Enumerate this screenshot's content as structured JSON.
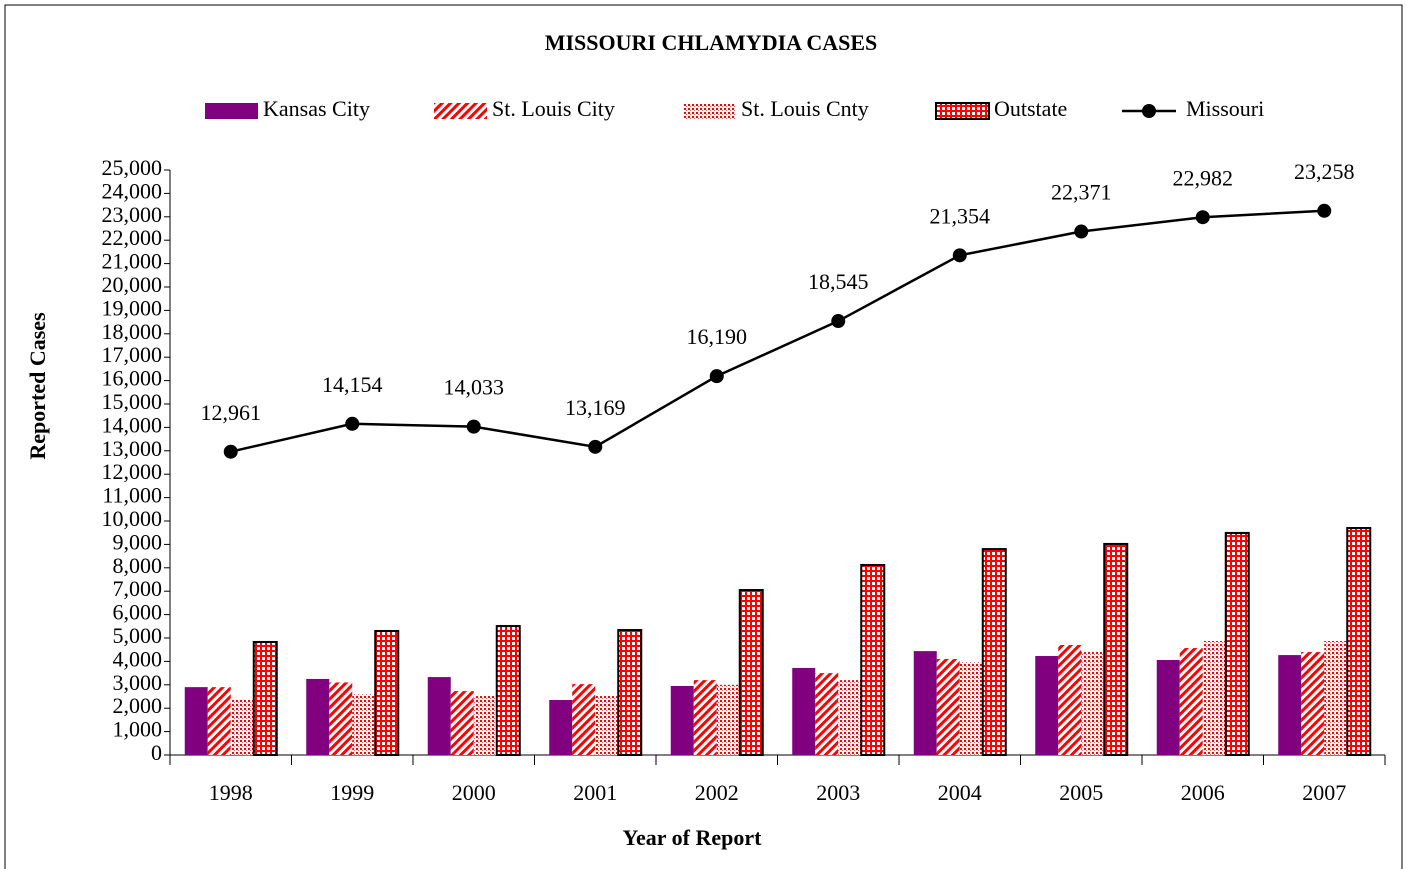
{
  "chart_data": {
    "type": "bar",
    "title": "MISSOURI CHLAMYDIA CASES",
    "x_label": "Year of Report",
    "y_label": "Reported Cases",
    "categories": [
      "1998",
      "1999",
      "2000",
      "2001",
      "2002",
      "2003",
      "2004",
      "2005",
      "2006",
      "2007"
    ],
    "series": [
      {
        "name": "Kansas City",
        "type": "bar",
        "color": "#800080",
        "pattern": "solid",
        "values": [
          2900,
          3250,
          3330,
          2350,
          2950,
          3720,
          4440,
          4230,
          4060,
          4270
        ]
      },
      {
        "name": "St. Louis City",
        "type": "bar",
        "color": "#ff0000",
        "pattern": "diagonal",
        "values": [
          2900,
          3100,
          2730,
          3030,
          3200,
          3500,
          4100,
          4700,
          4570,
          4400
        ]
      },
      {
        "name": "St. Louis Cnty",
        "type": "bar",
        "color": "#ff0000",
        "pattern": "dots",
        "values": [
          2350,
          2600,
          2520,
          2520,
          3000,
          3200,
          3970,
          4400,
          4870,
          4870
        ]
      },
      {
        "name": "Outstate",
        "type": "bar",
        "color": "#ff0000",
        "pattern": "grid",
        "values": [
          4830,
          5300,
          5510,
          5340,
          7050,
          8120,
          8800,
          9020,
          9490,
          9700
        ]
      },
      {
        "name": "Missouri",
        "type": "line",
        "color": "#000000",
        "values": [
          12961,
          14154,
          14033,
          13169,
          16190,
          18545,
          21354,
          22371,
          22982,
          23258
        ],
        "value_labels": [
          "12,961",
          "14,154",
          "14,033",
          "13,169",
          "16,190",
          "18,545",
          "21,354",
          "22,371",
          "22,982",
          "23,258"
        ]
      }
    ],
    "ylim": [
      0,
      25000
    ],
    "yticks": [
      0,
      {
        "value": 1000,
        "label": "1,000"
      },
      {
        "value": 2000,
        "label": "2,000"
      },
      {
        "value": 3000,
        "label": "3,000"
      },
      {
        "value": 4000,
        "label": "4,000"
      },
      {
        "value": 5000,
        "label": "5,000"
      },
      {
        "value": 6000,
        "label": "6,000"
      },
      {
        "value": 7000,
        "label": "7,000"
      },
      {
        "value": 8000,
        "label": "8,000"
      },
      {
        "value": 9000,
        "label": "9,000"
      },
      {
        "value": 10000,
        "label": "10,000"
      },
      {
        "value": 11000,
        "label": "11,000"
      },
      {
        "value": 12000,
        "label": "12,000"
      },
      {
        "value": 13000,
        "label": "13,000"
      },
      {
        "value": 14000,
        "label": "14,000"
      },
      {
        "value": 15000,
        "label": "15,000"
      },
      {
        "value": 16000,
        "label": "16,000"
      },
      {
        "value": 17000,
        "label": "17,000"
      },
      {
        "value": 18000,
        "label": "18,000"
      },
      {
        "value": 19000,
        "label": "19,000"
      },
      {
        "value": 20000,
        "label": "20,000"
      },
      {
        "value": 21000,
        "label": "21,000"
      },
      {
        "value": 22000,
        "label": "22,000"
      },
      {
        "value": 23000,
        "label": "23,000"
      },
      {
        "value": 24000,
        "label": "24,000"
      },
      {
        "value": 25000,
        "label": "25,000"
      }
    ],
    "grid": false,
    "legend": "top"
  }
}
